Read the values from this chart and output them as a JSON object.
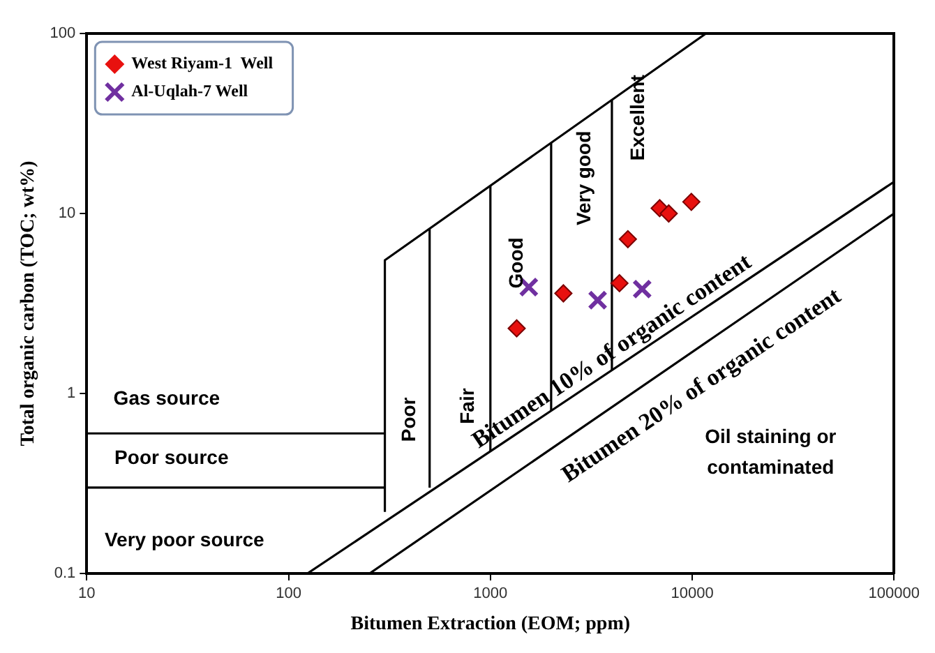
{
  "chart_data": {
    "type": "scatter",
    "xlabel": "Bitumen Extraction (EOM; ppm)",
    "ylabel": "Total organic carbon (TOC; wt%)",
    "log": "xy",
    "xlim": [
      10,
      100000
    ],
    "ylim": [
      0.1,
      100
    ],
    "xticks": [
      10,
      100,
      1000,
      10000,
      100000
    ],
    "yticks": [
      0.1,
      1,
      10,
      100
    ],
    "grid": false,
    "legend": "top left",
    "series": [
      {
        "name": "West Riyam-1  Well",
        "type": "scatter",
        "marker": "diamond",
        "color": "#e8110f",
        "x": [
          1350,
          2300,
          4360,
          4800,
          6900,
          7650,
          9900
        ],
        "values": [
          2.3,
          3.6,
          4.1,
          7.2,
          10.7,
          10,
          11.6
        ]
      },
      {
        "name": "Al-Uqlah-7 Well",
        "type": "scatter",
        "marker": "cross",
        "color": "#7030a0",
        "x": [
          1550,
          3400,
          5650
        ],
        "values": [
          3.9,
          3.3,
          3.8
        ]
      },
      {
        "type": "line",
        "marker": "none",
        "color": "#000000",
        "x": [
          300,
          300,
          11700
        ],
        "values": [
          0.22,
          5.5,
          100
        ]
      },
      {
        "type": "line",
        "marker": "none",
        "color": "#000000",
        "x": [
          500,
          500
        ],
        "values": [
          0.3,
          8.2
        ]
      },
      {
        "type": "line",
        "marker": "none",
        "color": "#000000",
        "x": [
          1000,
          1000
        ],
        "values": [
          0.48,
          14.3
        ]
      },
      {
        "type": "line",
        "marker": "none",
        "color": "#000000",
        "x": [
          2000,
          2000
        ],
        "values": [
          0.8,
          24.7
        ]
      },
      {
        "type": "line",
        "marker": "none",
        "color": "#000000",
        "x": [
          4000,
          4000
        ],
        "values": [
          1.35,
          42.8
        ]
      },
      {
        "type": "line",
        "marker": "none",
        "color": "#000000",
        "x": [
          124,
          100000
        ],
        "values": [
          0.1,
          15
        ]
      },
      {
        "type": "line",
        "marker": "none",
        "color": "#000000",
        "x": [
          252,
          100000
        ],
        "values": [
          0.1,
          10
        ]
      },
      {
        "type": "line",
        "marker": "none",
        "color": "#000000",
        "x": [
          10,
          300
        ],
        "values": [
          0.6,
          0.6
        ]
      },
      {
        "type": "line",
        "marker": "none",
        "color": "#000000",
        "x": [
          10,
          300
        ],
        "values": [
          0.3,
          0.3
        ]
      }
    ],
    "annotations": [
      "Gas source",
      "Poor source",
      "Very poor source",
      "Poor",
      "Fair",
      "Good",
      "Very good",
      "Excellent",
      "Bitumen 10% of organic content",
      "Bitumen 20% of organic content",
      "Oil staining or\ncontaminated"
    ]
  }
}
